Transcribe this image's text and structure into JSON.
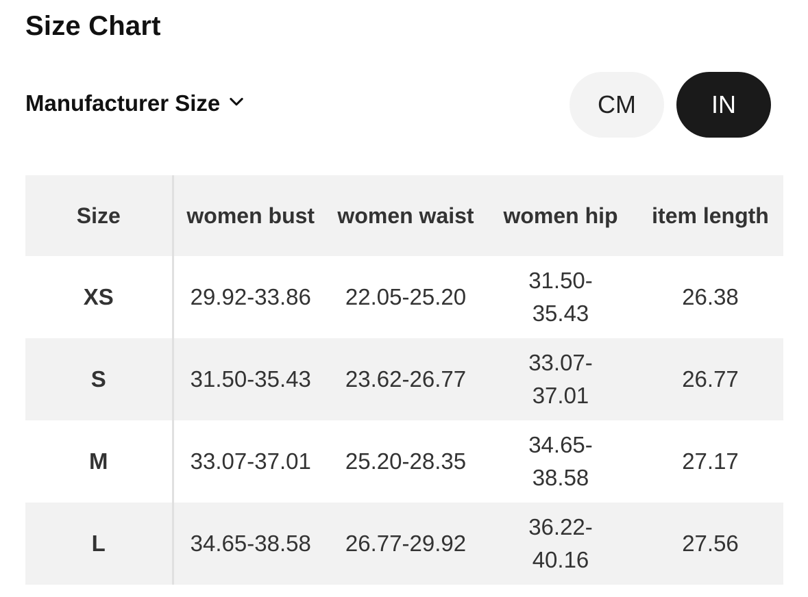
{
  "title": "Size Chart",
  "size_selector": {
    "label": "Manufacturer Size",
    "icon": "chevron-down-icon"
  },
  "units": {
    "options": [
      "CM",
      "IN"
    ],
    "selected": "IN",
    "colors": {
      "active_bg": "#1a1a1a",
      "active_text": "#ffffff",
      "inactive_bg": "#f3f3f3"
    }
  },
  "table": {
    "headers": [
      "Size",
      "women bust",
      "women waist",
      "women hip",
      "item length"
    ],
    "rows": [
      {
        "size": "XS",
        "bust": "29.92-33.86",
        "waist": "22.05-25.20",
        "hip": "31.50-35.43",
        "length": "26.38"
      },
      {
        "size": "S",
        "bust": "31.50-35.43",
        "waist": "23.62-26.77",
        "hip": "33.07-37.01",
        "length": "26.77"
      },
      {
        "size": "M",
        "bust": "33.07-37.01",
        "waist": "25.20-28.35",
        "hip": "34.65-38.58",
        "length": "27.17"
      },
      {
        "size": "L",
        "bust": "34.65-38.58",
        "waist": "26.77-29.92",
        "hip": "36.22-40.16",
        "length": "27.56"
      }
    ]
  }
}
